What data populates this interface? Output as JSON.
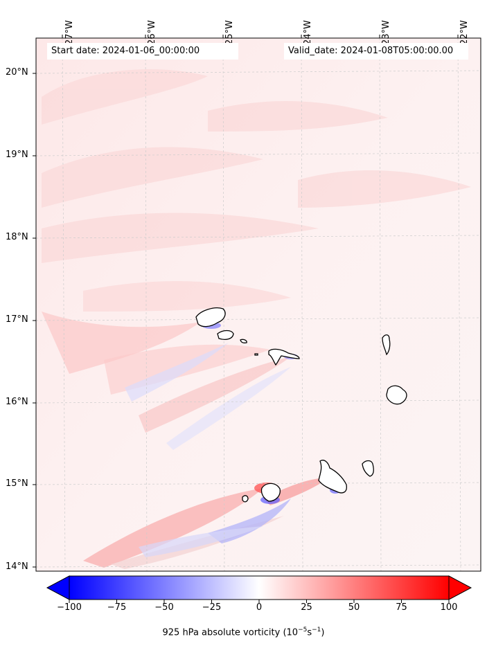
{
  "header": {
    "start_date": "Start date: 2024-01-06_00:00:00",
    "valid_date": "Valid_date: 2024-01-08T05:00:00.00"
  },
  "axes": {
    "longitude_labels": [
      "27°W",
      "26°W",
      "25°W",
      "24°W",
      "23°W",
      "22°W"
    ],
    "latitude_labels": [
      "20°N",
      "19°N",
      "18°N",
      "17°N",
      "16°N",
      "15°N",
      "14°N"
    ]
  },
  "colorbar": {
    "min": -100,
    "max": 100,
    "tick_labels": [
      "−100",
      "−75",
      "−50",
      "−25",
      "0",
      "25",
      "50",
      "75",
      "100"
    ],
    "label_prefix": "925 hPa absolute vorticity (10",
    "label_exp1": "−5",
    "label_mid": "s",
    "label_exp2": "−1",
    "label_suffix": ")",
    "color_negative": "#0000ff",
    "color_positive": "#ff0000",
    "color_zero": "#ffffff"
  },
  "map": {
    "region": "Cape Verde Islands",
    "background_color": "#fdf3f3"
  }
}
